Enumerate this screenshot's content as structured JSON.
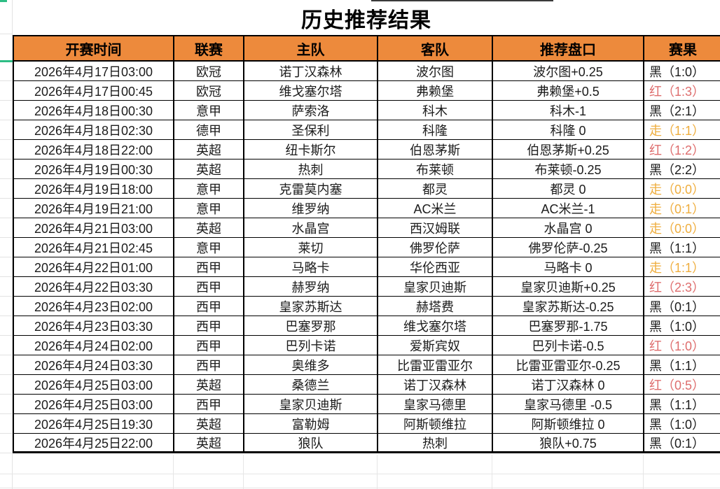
{
  "title": "历史推荐结果",
  "colors": {
    "header_bg": "#ED8A3C",
    "result_black": "#1b1b1b",
    "result_red": "#de6d6d",
    "result_push": "#efae3f",
    "accent_teal": "#2ebd85"
  },
  "table": {
    "columns": [
      {
        "key": "time",
        "label": "开赛时间"
      },
      {
        "key": "league",
        "label": "联赛"
      },
      {
        "key": "home",
        "label": "主队"
      },
      {
        "key": "away",
        "label": "客队"
      },
      {
        "key": "handicap",
        "label": "推荐盘口"
      },
      {
        "key": "result",
        "label": "赛果"
      }
    ],
    "rows": [
      {
        "time": "2026年4月17日03:00",
        "league": "欧冠",
        "home": "诺丁汉森林",
        "away": "波尔图",
        "handicap": "波尔图+0.25",
        "result": "黑（1:0）",
        "result_type": "black"
      },
      {
        "time": "2026年4月17日00:45",
        "league": "欧冠",
        "home": "维戈塞尔塔",
        "away": "弗赖堡",
        "handicap": "弗赖堡+0.5",
        "result": "红（1:3）",
        "result_type": "red"
      },
      {
        "time": "2026年4月18日00:30",
        "league": "意甲",
        "home": "萨索洛",
        "away": "科木",
        "handicap": "科木-1",
        "result": "黑（2:1）",
        "result_type": "black"
      },
      {
        "time": "2026年4月18日02:30",
        "league": "德甲",
        "home": "圣保利",
        "away": "科隆",
        "handicap": "科隆 0",
        "result": "走（1:1）",
        "result_type": "push"
      },
      {
        "time": "2026年4月18日22:00",
        "league": "英超",
        "home": "纽卡斯尔",
        "away": "伯恩茅斯",
        "handicap": "伯恩茅斯+0.25",
        "result": "红（1:2）",
        "result_type": "red"
      },
      {
        "time": "2026年4月19日00:30",
        "league": "英超",
        "home": "热刺",
        "away": "布莱顿",
        "handicap": "布莱顿-0.25",
        "result": "黑（2:2）",
        "result_type": "black"
      },
      {
        "time": "2026年4月19日18:00",
        "league": "意甲",
        "home": "克雷莫内塞",
        "away": "都灵",
        "handicap": "都灵 0",
        "result": "走（0:0）",
        "result_type": "push"
      },
      {
        "time": "2026年4月19日21:00",
        "league": "意甲",
        "home": "维罗纳",
        "away": "AC米兰",
        "handicap": "AC米兰-1",
        "result": "走（0:1）",
        "result_type": "push"
      },
      {
        "time": "2026年4月21日03:00",
        "league": "英超",
        "home": "水晶宫",
        "away": "西汉姆联",
        "handicap": "水晶宫 0",
        "result": "走（0:0）",
        "result_type": "push"
      },
      {
        "time": "2026年4月21日02:45",
        "league": "意甲",
        "home": "莱切",
        "away": "佛罗伦萨",
        "handicap": "佛罗伦萨-0.25",
        "result": "黑（1:1）",
        "result_type": "black"
      },
      {
        "time": "2026年4月22日01:00",
        "league": "西甲",
        "home": "马略卡",
        "away": "华伦西亚",
        "handicap": "马略卡 0",
        "result": "走（1:1）",
        "result_type": "push"
      },
      {
        "time": "2026年4月22日03:30",
        "league": "西甲",
        "home": "赫罗纳",
        "away": "皇家贝迪斯",
        "handicap": "皇家贝迪斯+0.25",
        "result": "红（2:3）",
        "result_type": "red"
      },
      {
        "time": "2026年4月23日02:00",
        "league": "西甲",
        "home": "皇家苏斯达",
        "away": "赫塔费",
        "handicap": "皇家苏斯达-0.25",
        "result": "黑（0:1）",
        "result_type": "black"
      },
      {
        "time": "2026年4月23日03:30",
        "league": "西甲",
        "home": "巴塞罗那",
        "away": "维戈塞尔塔",
        "handicap": "巴塞罗那-1.75",
        "result": "黑（1:0）",
        "result_type": "black"
      },
      {
        "time": "2026年4月24日02:00",
        "league": "西甲",
        "home": "巴列卡诺",
        "away": "爱斯宾奴",
        "handicap": "巴列卡诺-0.5",
        "result": "红（1:0）",
        "result_type": "red"
      },
      {
        "time": "2026年4月24日03:30",
        "league": "西甲",
        "home": "奥维多",
        "away": "比雷亚雷亚尔",
        "handicap": "比雷亚雷亚尔-0.25",
        "result": "黑（1:1）",
        "result_type": "black"
      },
      {
        "time": "2026年4月25日03:00",
        "league": "英超",
        "home": "桑德兰",
        "away": "诺丁汉森林",
        "handicap": "诺丁汉森林 0",
        "result": "红（0:5）",
        "result_type": "red"
      },
      {
        "time": "2026年4月25日03:00",
        "league": "西甲",
        "home": "皇家贝迪斯",
        "away": "皇家马德里",
        "handicap": "皇家马德里 -0.5",
        "result": "黑（1:1）",
        "result_type": "black"
      },
      {
        "time": "2026年4月25日19:30",
        "league": "英超",
        "home": "富勒姆",
        "away": "阿斯顿维拉",
        "handicap": "阿斯顿维拉 0",
        "result": "黑（1:0）",
        "result_type": "black"
      },
      {
        "time": "2026年4月25日22:00",
        "league": "英超",
        "home": "狼队",
        "away": "热刺",
        "handicap": "狼队+0.75",
        "result": "黑（0:1）",
        "result_type": "black"
      }
    ]
  }
}
